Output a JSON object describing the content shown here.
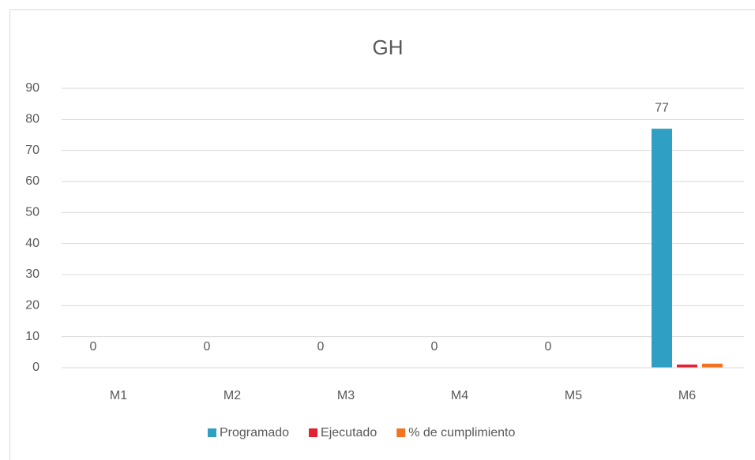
{
  "chart_data": {
    "type": "bar",
    "title": "GH",
    "categories": [
      "M1",
      "M2",
      "M3",
      "M4",
      "M5",
      "M6"
    ],
    "series": [
      {
        "name": "Programado",
        "color": "#2fa0c3",
        "values": [
          0,
          0,
          0,
          0,
          0,
          77
        ]
      },
      {
        "name": "Ejecutado",
        "color": "#e3212f",
        "values": [
          0,
          0,
          0,
          0,
          0,
          1
        ]
      },
      {
        "name": "% de cumplimiento",
        "color": "#f27421",
        "values": [
          0,
          0,
          0,
          0,
          0,
          1.3
        ]
      }
    ],
    "data_labels_series": 0,
    "ylim": [
      0,
      90
    ],
    "yticks": [
      0,
      10,
      20,
      30,
      40,
      50,
      60,
      70,
      80,
      90
    ],
    "grid": true,
    "legend": "bottom"
  }
}
